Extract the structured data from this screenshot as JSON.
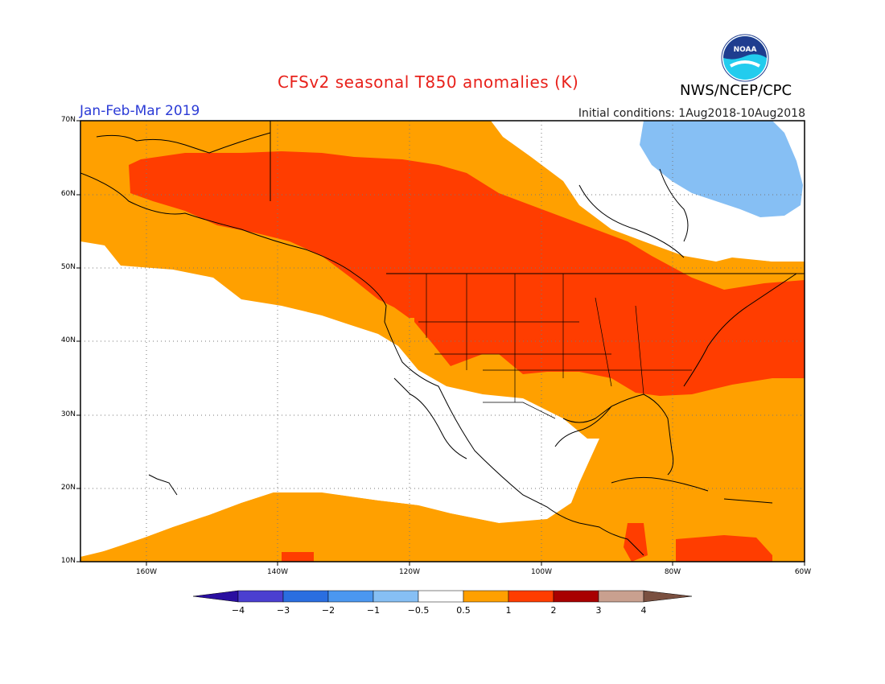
{
  "header": {
    "title": "CFSv2 seasonal T850 anomalies (K)",
    "agency": "NWS/NCEP/CPC",
    "season": "Jan-Feb-Mar 2019",
    "initial_conditions": "Initial conditions: 1Aug2018-10Aug2018",
    "logo_text": "NOAA"
  },
  "map": {
    "projection": "lat-lon",
    "extent": {
      "lon_min": -170,
      "lon_max": -60,
      "lat_min": 10,
      "lat_max": 70
    },
    "lat_labels": [
      "70N",
      "60N",
      "50N",
      "40N",
      "30N",
      "20N",
      "10N"
    ],
    "lon_labels": [
      "160W",
      "140W",
      "120W",
      "100W",
      "80W",
      "60W"
    ],
    "anomaly_regions": [
      {
        "name": "warm-band-alaska-canada-us",
        "class": "1 to 2"
      },
      {
        "name": "warm-band-pacific-north",
        "class": "0.5 to 1"
      },
      {
        "name": "warm-band-pacific-south",
        "class": "0.5 to 1"
      },
      {
        "name": "warm-band-atlantic-gulf",
        "class": "0.5 to 1"
      },
      {
        "name": "cold-patch-baffin",
        "class": "-1 to -0.5"
      }
    ]
  },
  "colorbar": {
    "labels": [
      "−4",
      "−3",
      "−2",
      "−1",
      "−0.5",
      "0.5",
      "1",
      "2",
      "3",
      "4"
    ],
    "colors": [
      "#2a0fa0",
      "#4b3fd0",
      "#2a6ee0",
      "#4b97f0",
      "#86bff4",
      "#ffffff",
      "#ffa000",
      "#ff3d00",
      "#a80000",
      "#c9a08f",
      "#7a5040"
    ]
  },
  "colors": {
    "title": "#e8211b",
    "season": "#2b3bd6",
    "orange": "#ffa000",
    "red": "#ff3d00",
    "lightblue": "#86bff4"
  }
}
